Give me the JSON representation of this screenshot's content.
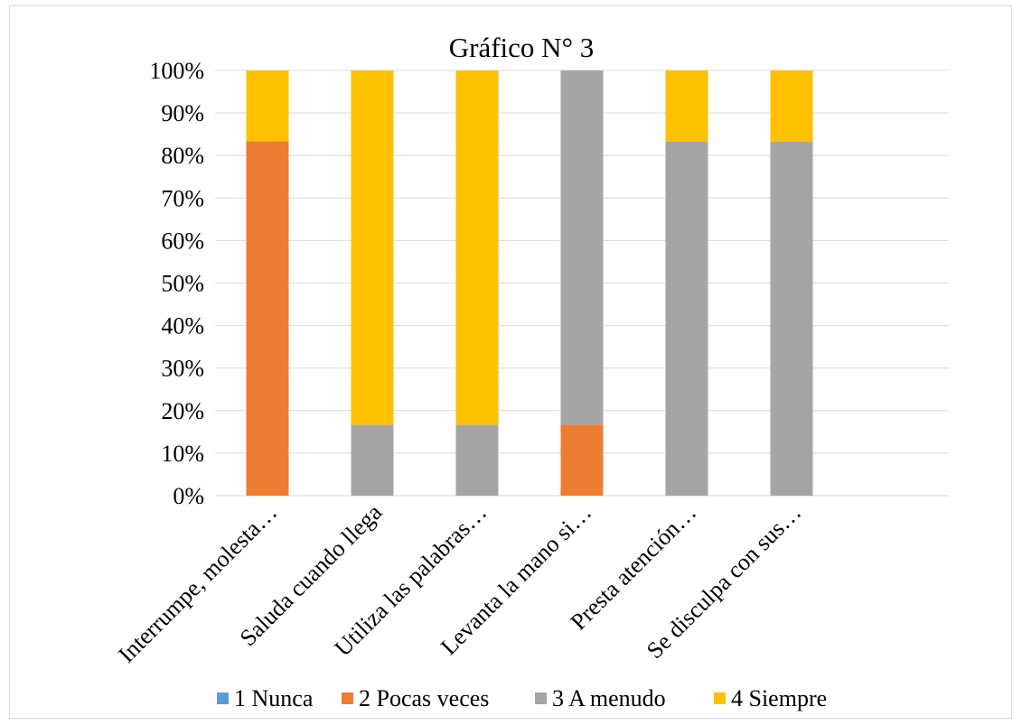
{
  "chart_data": {
    "type": "bar",
    "stacked": true,
    "percent": true,
    "title": "Gráfico N° 3",
    "categories": [
      "Interrumpe, molesta…",
      "Saluda cuando llega",
      "Utiliza las palabras…",
      "Levanta la mano si…",
      "Presta atención…",
      "Se disculpa con sus…"
    ],
    "series": [
      {
        "name": "1 Nunca",
        "color": "#5b9bd5",
        "values": [
          0,
          0,
          0,
          0,
          0,
          0
        ]
      },
      {
        "name": "2 Pocas veces",
        "color": "#ed7d31",
        "values": [
          83.3,
          0,
          0,
          16.7,
          0,
          0
        ]
      },
      {
        "name": "3 A menudo",
        "color": "#a5a5a5",
        "values": [
          0,
          16.7,
          16.7,
          83.3,
          83.3,
          83.3
        ]
      },
      {
        "name": "4 Siempre",
        "color": "#ffc000",
        "values": [
          16.7,
          83.3,
          83.3,
          0,
          16.7,
          16.7
        ]
      }
    ],
    "yticks": [
      "0%",
      "10%",
      "20%",
      "30%",
      "40%",
      "50%",
      "60%",
      "70%",
      "80%",
      "90%",
      "100%"
    ],
    "ylim": [
      0,
      100
    ],
    "grid": true,
    "legend_position": "bottom"
  }
}
